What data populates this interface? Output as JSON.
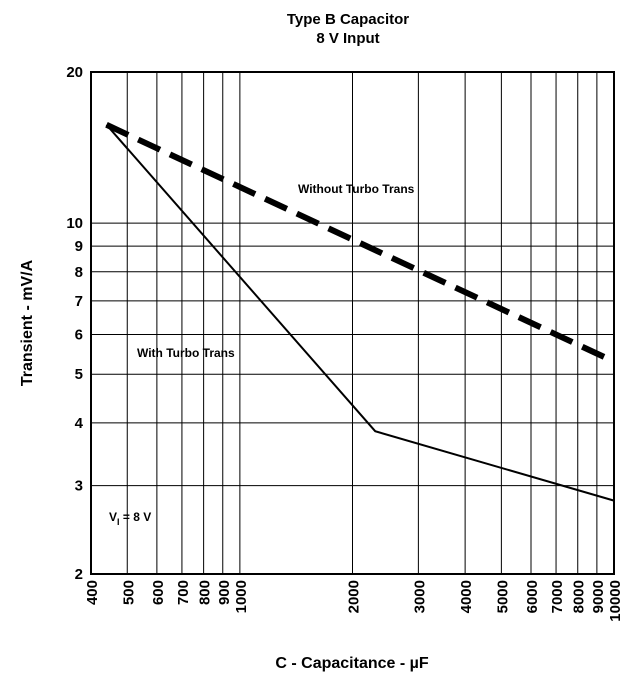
{
  "chart_data": {
    "type": "line",
    "title": "Type B Capacitor",
    "subtitle": "8 V Input",
    "xlabel": "C - Capacitance - µF",
    "ylabel": "Transient - mV/A",
    "xscale": "log",
    "yscale": "log",
    "xlim": [
      400,
      10000
    ],
    "ylim": [
      2,
      20
    ],
    "grid": true,
    "x_ticks": [
      400,
      500,
      600,
      700,
      800,
      900,
      1000,
      2000,
      3000,
      4000,
      5000,
      6000,
      7000,
      8000,
      9000,
      10000
    ],
    "x_tick_labels": [
      "400",
      "500",
      "600",
      "700",
      "800",
      "900",
      "1000",
      "2000",
      "3000",
      "4000",
      "5000",
      "6000",
      "7000",
      "8000",
      "9000",
      "10000"
    ],
    "y_ticks": [
      2,
      3,
      4,
      5,
      6,
      7,
      8,
      9,
      10,
      20
    ],
    "y_tick_labels": [
      "2",
      "3",
      "4",
      "5",
      "6",
      "7",
      "8",
      "9",
      "10",
      "20"
    ],
    "series": [
      {
        "name": "Without Turbo Trans",
        "style": "dashed",
        "x": [
          440,
          10000
        ],
        "y": [
          15.7,
          5.3
        ]
      },
      {
        "name": "With Turbo Trans",
        "style": "solid",
        "x": [
          440,
          2300,
          10000
        ],
        "y": [
          15.7,
          3.85,
          2.8
        ]
      }
    ],
    "annotations": [
      {
        "label": "V",
        "subscript": "I",
        "rest": " = 8 V"
      }
    ]
  }
}
